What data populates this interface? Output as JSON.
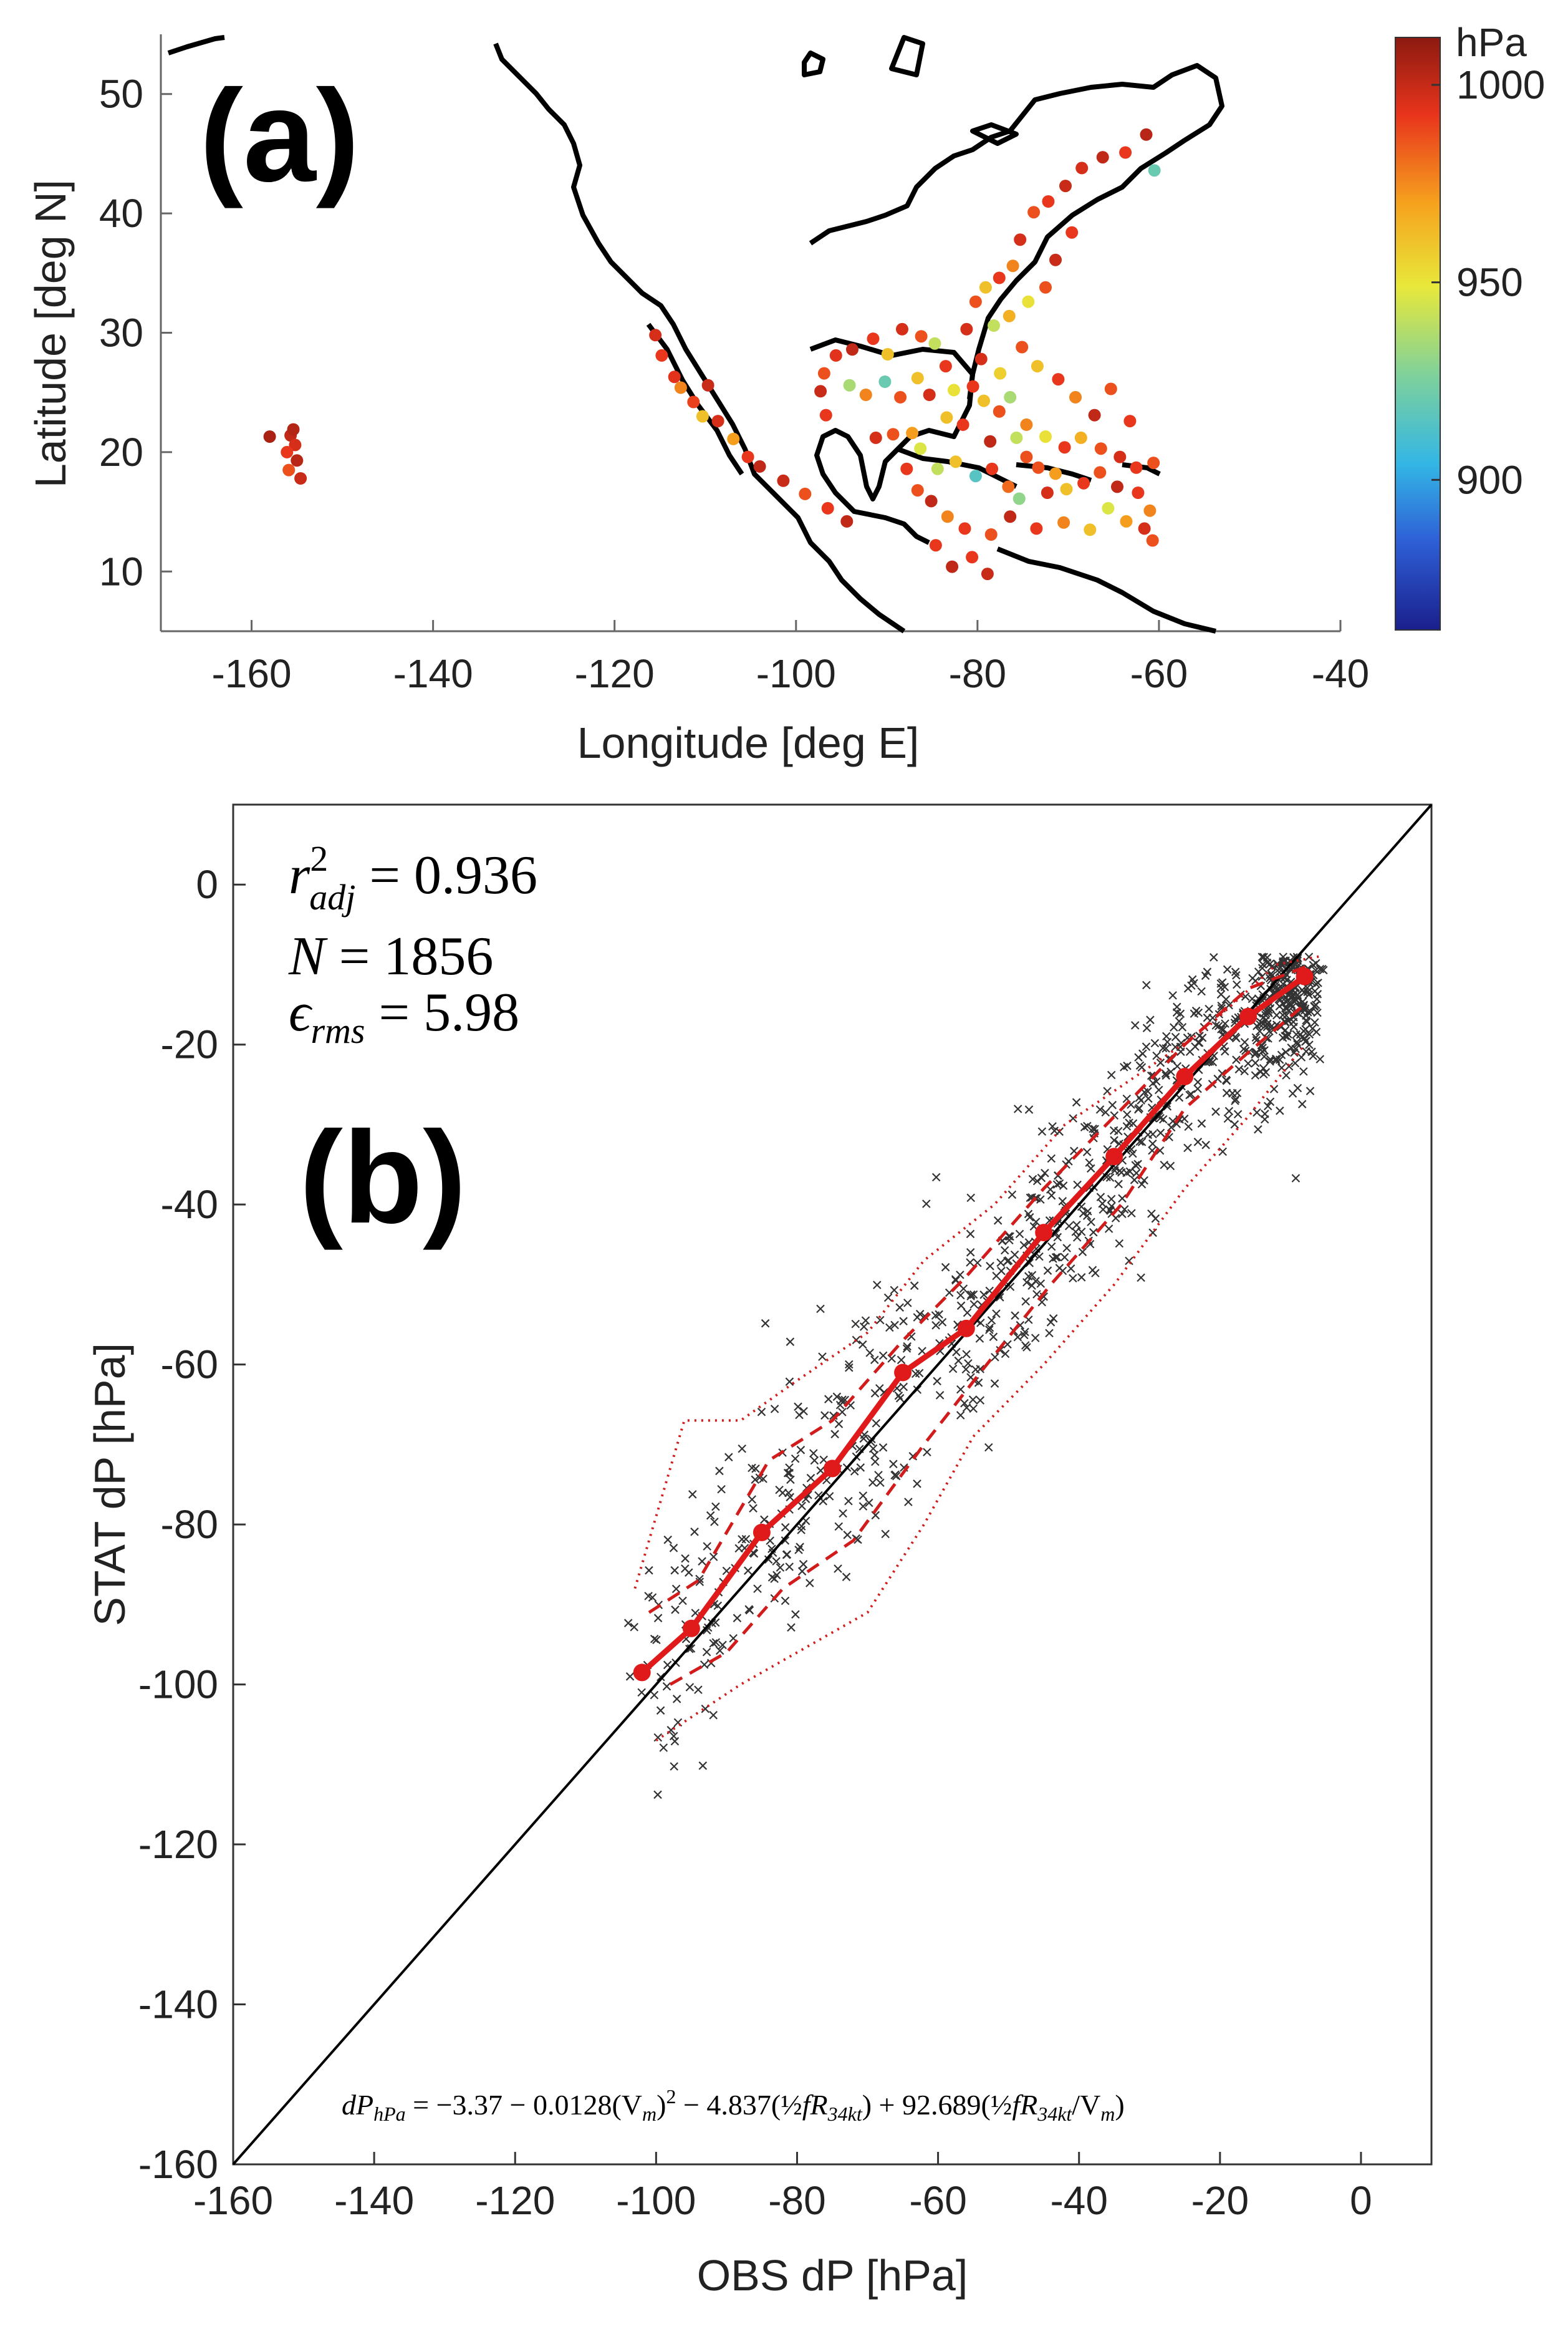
{
  "figure": {
    "panel_a_label": "(a)",
    "panel_b_label": "(b)"
  },
  "chart_data": [
    {
      "type": "scatter",
      "panel": "(a)",
      "title": "",
      "xlabel": "Longitude [deg E]",
      "ylabel": "Latitude [deg N]",
      "xlim": [
        -170,
        -40
      ],
      "ylim": [
        5,
        55
      ],
      "xticks": [
        -160,
        -140,
        -120,
        -100,
        -80,
        -60,
        -40
      ],
      "yticks": [
        10,
        20,
        30,
        40,
        50
      ],
      "colorbar": {
        "label": "hPa",
        "range": [
          862,
          1012
        ],
        "ticks": [
          900,
          950,
          1000
        ],
        "colormap": [
          "#1a1f8c",
          "#2e5fd6",
          "#33b6e5",
          "#7fd19b",
          "#e8e83a",
          "#f6a21e",
          "#e8341c",
          "#8c1a10"
        ]
      },
      "points": [
        [
          -155.7,
          21.4,
          1000
        ],
        [
          -155.2,
          20.6,
          995
        ],
        [
          -156.1,
          20.0,
          990
        ],
        [
          -155.0,
          19.3,
          1002
        ],
        [
          -155.9,
          18.5,
          985
        ],
        [
          -154.6,
          17.8,
          998
        ],
        [
          -158.0,
          21.3,
          1005
        ],
        [
          -155.4,
          21.9,
          1003
        ],
        [
          -115.5,
          29.8,
          995
        ],
        [
          -114.8,
          28.1,
          990
        ],
        [
          -113.4,
          26.3,
          992
        ],
        [
          -111.3,
          24.2,
          988
        ],
        [
          -110.3,
          23.0,
          960
        ],
        [
          -108.6,
          22.6,
          995
        ],
        [
          -106.9,
          21.1,
          970
        ],
        [
          -105.3,
          19.6,
          990
        ],
        [
          -104.0,
          18.8,
          1000
        ],
        [
          -101.4,
          17.6,
          998
        ],
        [
          -99.0,
          16.5,
          985
        ],
        [
          -96.5,
          15.3,
          990
        ],
        [
          -94.4,
          14.2,
          1000
        ],
        [
          -112.7,
          25.4,
          975
        ],
        [
          -109.7,
          25.6,
          998
        ],
        [
          -91.5,
          29.5,
          990
        ],
        [
          -89.9,
          28.2,
          960
        ],
        [
          -88.3,
          30.3,
          995
        ],
        [
          -86.2,
          29.7,
          985
        ],
        [
          -84.7,
          29.1,
          940
        ],
        [
          -93.8,
          28.6,
          1000
        ],
        [
          -95.6,
          28.1,
          992
        ],
        [
          -96.9,
          26.6,
          985
        ],
        [
          -97.3,
          25.1,
          998
        ],
        [
          -96.7,
          23.1,
          990
        ],
        [
          -94.1,
          25.6,
          935
        ],
        [
          -92.3,
          24.8,
          975
        ],
        [
          -90.2,
          25.9,
          920
        ],
        [
          -88.5,
          24.6,
          985
        ],
        [
          -86.6,
          26.2,
          960
        ],
        [
          -85.3,
          24.8,
          995
        ],
        [
          -83.5,
          27.2,
          990
        ],
        [
          -82.6,
          25.2,
          950
        ],
        [
          -91.2,
          21.2,
          995
        ],
        [
          -89.3,
          21.5,
          985
        ],
        [
          -87.2,
          21.6,
          970
        ],
        [
          -86.3,
          20.3,
          945
        ],
        [
          -87.8,
          18.6,
          990
        ],
        [
          -86.6,
          16.8,
          985
        ],
        [
          -85.1,
          15.9,
          1000
        ],
        [
          -83.3,
          14.6,
          975
        ],
        [
          -81.4,
          13.6,
          990
        ],
        [
          -84.4,
          18.6,
          940
        ],
        [
          -82.4,
          19.2,
          960
        ],
        [
          -80.2,
          18.0,
          915
        ],
        [
          -78.4,
          18.6,
          990
        ],
        [
          -76.6,
          17.1,
          980
        ],
        [
          -74.6,
          19.6,
          985
        ],
        [
          -75.4,
          16.1,
          930
        ],
        [
          -72.3,
          16.6,
          995
        ],
        [
          -70.2,
          16.9,
          960
        ],
        [
          -68.3,
          17.4,
          990
        ],
        [
          -66.5,
          18.3,
          985
        ],
        [
          -64.6,
          17.1,
          1000
        ],
        [
          -62.3,
          16.6,
          990
        ],
        [
          -61.0,
          15.1,
          975
        ],
        [
          -61.6,
          13.6,
          995
        ],
        [
          -60.7,
          12.6,
          985
        ],
        [
          -63.6,
          14.2,
          970
        ],
        [
          -65.6,
          15.3,
          945
        ],
        [
          -67.6,
          13.5,
          960
        ],
        [
          -70.5,
          14.1,
          975
        ],
        [
          -73.5,
          13.6,
          990
        ],
        [
          -76.4,
          14.6,
          1000
        ],
        [
          -78.5,
          13.1,
          985
        ],
        [
          -80.6,
          11.2,
          990
        ],
        [
          -78.9,
          9.8,
          998
        ],
        [
          -82.8,
          10.4,
          1000
        ],
        [
          -84.6,
          12.2,
          990
        ],
        [
          -80.5,
          25.5,
          990
        ],
        [
          -79.3,
          24.3,
          960
        ],
        [
          -77.6,
          23.4,
          985
        ],
        [
          -76.4,
          24.6,
          935
        ],
        [
          -74.6,
          22.3,
          975
        ],
        [
          -72.5,
          21.3,
          950
        ],
        [
          -70.4,
          20.4,
          990
        ],
        [
          -68.6,
          21.2,
          965
        ],
        [
          -66.4,
          20.3,
          985
        ],
        [
          -64.3,
          19.6,
          995
        ],
        [
          -62.5,
          18.7,
          990
        ],
        [
          -60.6,
          19.1,
          985
        ],
        [
          -78.6,
          20.9,
          1000
        ],
        [
          -81.6,
          22.3,
          990
        ],
        [
          -83.4,
          22.9,
          960
        ],
        [
          -75.7,
          21.2,
          940
        ],
        [
          -73.3,
          18.7,
          985
        ],
        [
          -71.4,
          18.2,
          970
        ],
        [
          -81.2,
          30.3,
          995
        ],
        [
          -80.2,
          32.6,
          985
        ],
        [
          -79.1,
          33.8,
          960
        ],
        [
          -77.6,
          34.6,
          990
        ],
        [
          -76.1,
          35.6,
          975
        ],
        [
          -75.3,
          37.8,
          995
        ],
        [
          -73.8,
          40.1,
          985
        ],
        [
          -72.2,
          41.0,
          990
        ],
        [
          -70.3,
          42.3,
          998
        ],
        [
          -68.5,
          43.8,
          995
        ],
        [
          -66.2,
          44.7,
          1000
        ],
        [
          -63.7,
          45.1,
          990
        ],
        [
          -61.4,
          46.6,
          1002
        ],
        [
          -60.5,
          43.6,
          920
        ],
        [
          -78.2,
          30.6,
          940
        ],
        [
          -76.5,
          31.4,
          965
        ],
        [
          -74.4,
          32.6,
          950
        ],
        [
          -72.5,
          33.8,
          985
        ],
        [
          -71.4,
          36.1,
          998
        ],
        [
          -69.6,
          38.4,
          990
        ],
        [
          -75.1,
          28.8,
          985
        ],
        [
          -73.4,
          27.2,
          960
        ],
        [
          -71.1,
          26.1,
          990
        ],
        [
          -69.2,
          24.6,
          975
        ],
        [
          -67.1,
          23.1,
          1000
        ],
        [
          -65.3,
          25.3,
          985
        ],
        [
          -63.2,
          22.6,
          990
        ],
        [
          -77.5,
          26.6,
          955
        ],
        [
          -79.6,
          27.8,
          995
        ]
      ]
    },
    {
      "type": "scatter",
      "panel": "(b)",
      "title": "",
      "xlabel": "OBS dP [hPa]",
      "ylabel": "STAT dP [hPa]",
      "xlim": [
        -160,
        10
      ],
      "ylim": [
        -160,
        10
      ],
      "xticks": [
        -160,
        -140,
        -120,
        -100,
        -80,
        -60,
        -40,
        -20,
        0
      ],
      "yticks": [
        -160,
        -140,
        -120,
        -100,
        -80,
        -60,
        -40,
        -20,
        0
      ],
      "stats": {
        "r2adj_label": "r",
        "r2adj_sup": "2",
        "r2adj_sub": "adj",
        "r2adj_value": "= 0.936",
        "n_label": "N",
        "n_value": "= 1856",
        "rms_label": "ϵ",
        "rms_sub": "rms",
        "rms_value": "= 5.98"
      },
      "equation": "dP_hPa = −3.37 − 0.0128(V_m)² − 4.837(½fR_34kt) + 92.689(½fR_34kt/V_m)",
      "equation_parts": {
        "lhs": "dP",
        "lhs_sub": "hPa",
        "term1": " = −3.37 − 0.0128(V",
        "term1_sub": "m",
        "term1_tail": ")",
        "term1_sup": "2",
        "term2": " − 4.837(",
        "half": "½",
        "fr": "fR",
        "fr_sub": "34kt",
        "term2_tail": ") + 92.689(",
        "term3_tail": "/V",
        "term3_sub": "m",
        "close": ")"
      },
      "one_to_one_line": [
        [
          -160,
          -160
        ],
        [
          10,
          10
        ]
      ],
      "bin_mean": {
        "x": [
          -102,
          -95,
          -85,
          -75,
          -65,
          -56,
          -45,
          -35,
          -25,
          -16,
          -8
        ],
        "y": [
          -98.5,
          -93,
          -81,
          -73,
          -61,
          -55.5,
          -43.5,
          -34,
          -24,
          -16.5,
          -11.5
        ]
      },
      "bin_std_upper": {
        "x": [
          -101,
          -94,
          -84,
          -75,
          -65,
          -56,
          -45,
          -35,
          -25,
          -16,
          -7
        ],
        "y": [
          -91,
          -87,
          -72,
          -67,
          -57,
          -49,
          -38,
          -29,
          -20,
          -13,
          -10
        ]
      },
      "bin_std_lower": {
        "x": [
          -98,
          -90,
          -82,
          -72,
          -62,
          -54,
          -44,
          -34,
          -25,
          -16,
          -8
        ],
        "y": [
          -100,
          -96,
          -88,
          -82,
          -70,
          -61,
          -50,
          -40,
          -28,
          -21,
          -15
        ]
      },
      "bin_range_upper": {
        "x": [
          -103,
          -96,
          -88,
          -80,
          -70,
          -62,
          -52,
          -42,
          -32,
          -22,
          -12,
          -6
        ],
        "y": [
          -88,
          -67,
          -67,
          -62,
          -56,
          -47,
          -40,
          -30,
          -24,
          -18,
          -10,
          -9
        ]
      },
      "bin_range_lower": {
        "x": [
          -100,
          -88,
          -78,
          -70,
          -62,
          -55,
          -45,
          -35,
          -25,
          -16,
          -8
        ],
        "y": [
          -107,
          -100,
          -95,
          -91,
          -80,
          -69,
          -60,
          -50,
          -38,
          -29,
          -20
        ]
      }
    }
  ]
}
